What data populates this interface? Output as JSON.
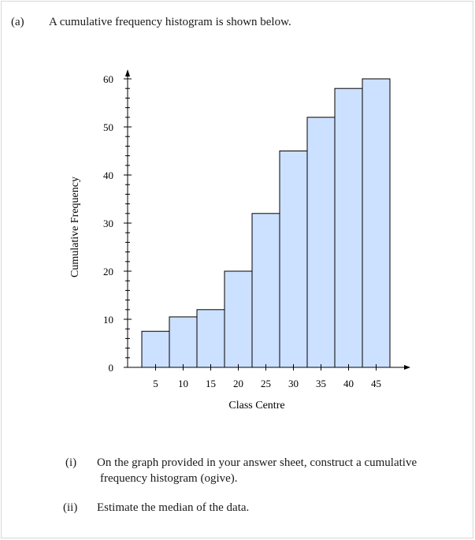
{
  "question": {
    "part_label": "(a)",
    "intro": "A cumulative frequency histogram is shown below.",
    "subparts": [
      {
        "num": "(i)",
        "line1": "On the graph provided in your answer sheet, construct a cumulative",
        "line2": "frequency histogram (ogive)."
      },
      {
        "num": "(ii)",
        "line1": "Estimate the median of the data.",
        "line2": ""
      }
    ]
  },
  "chart_data": {
    "type": "bar",
    "xlabel": "Class Centre",
    "ylabel": "Cumulative Frequency",
    "categories": [
      5,
      10,
      15,
      20,
      25,
      30,
      35,
      40,
      45
    ],
    "values": [
      7.5,
      10.5,
      12,
      20,
      32,
      45,
      52,
      58,
      60
    ],
    "yticks": [
      0,
      10,
      20,
      30,
      40,
      50,
      60
    ],
    "ylim": [
      0,
      60
    ],
    "bar_color": "#cce0ff",
    "edge_color": "#000000",
    "grid": false
  }
}
